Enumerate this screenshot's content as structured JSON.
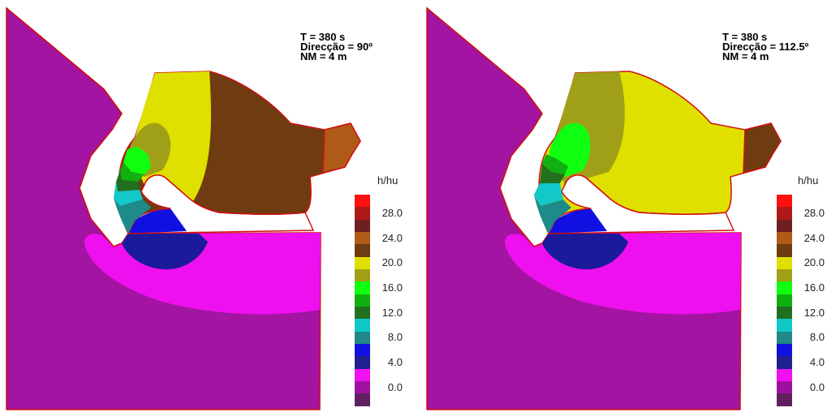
{
  "panels": [
    {
      "time_label": "T = 380 s",
      "direction_label": "Direcção = 90º",
      "level_label": "NM = 4 m"
    },
    {
      "time_label": "T = 380 s",
      "direction_label": "Direcção = 112.5º",
      "level_label": "NM = 4 m"
    }
  ],
  "legend": {
    "title": "h/hu",
    "colors": [
      "#ff1010",
      "#b01818",
      "#6e2020",
      "#b05a18",
      "#6e3c10",
      "#e0e000",
      "#a0a018",
      "#10ff10",
      "#10b010",
      "#207020",
      "#10c8c8",
      "#208888",
      "#1010e0",
      "#202090",
      "#f010f0",
      "#a010a0",
      "#602060"
    ],
    "tick_labels": [
      "28.0",
      "24.0",
      "20.0",
      "16.0",
      "12.0",
      "8.0",
      "4.0",
      "0.0"
    ]
  },
  "palette": {
    "outline": "#d01010",
    "deep_water": "#a314a3",
    "magenta": "#ee10ee",
    "navy": "#1a1a9a",
    "blue": "#1010e0",
    "teal": "#1e8a8a",
    "cyan": "#12c8c8",
    "dark_green": "#207020",
    "green": "#10b010",
    "bright_green": "#10ff10",
    "olive": "#a0a018",
    "yellow": "#e0e000",
    "dark_brown": "#6e3c10",
    "brown": "#b05a18"
  }
}
